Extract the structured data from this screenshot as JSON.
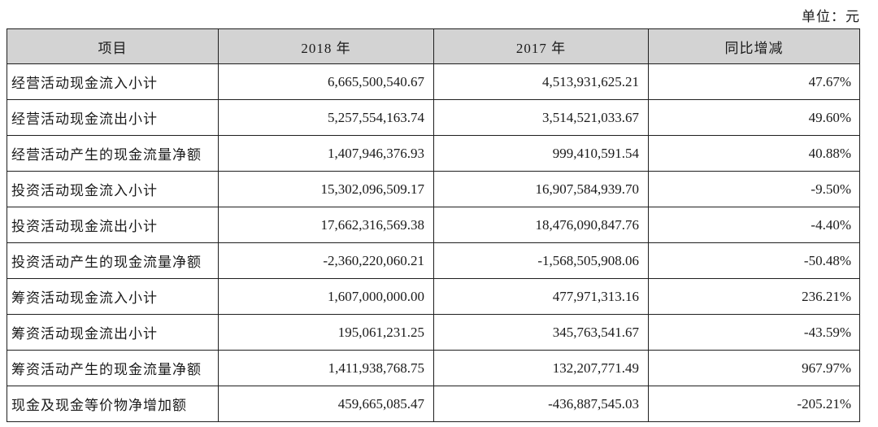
{
  "unit_label": "单位：元",
  "colors": {
    "header_bg": "#d3d3d3",
    "border": "#1f1f1f",
    "text": "#1a1a1a",
    "page_bg": "#ffffff"
  },
  "table": {
    "headers": [
      "项目",
      "2018 年",
      "2017 年",
      "同比增减"
    ],
    "rows": [
      {
        "item": "经营活动现金流入小计",
        "y2018": "6,665,500,540.67",
        "y2017": "4,513,931,625.21",
        "change": "47.67%"
      },
      {
        "item": "经营活动现金流出小计",
        "y2018": "5,257,554,163.74",
        "y2017": "3,514,521,033.67",
        "change": "49.60%"
      },
      {
        "item": "经营活动产生的现金流量净额",
        "y2018": "1,407,946,376.93",
        "y2017": "999,410,591.54",
        "change": "40.88%"
      },
      {
        "item": "投资活动现金流入小计",
        "y2018": "15,302,096,509.17",
        "y2017": "16,907,584,939.70",
        "change": "-9.50%"
      },
      {
        "item": "投资活动现金流出小计",
        "y2018": "17,662,316,569.38",
        "y2017": "18,476,090,847.76",
        "change": "-4.40%"
      },
      {
        "item": "投资活动产生的现金流量净额",
        "y2018": "-2,360,220,060.21",
        "y2017": "-1,568,505,908.06",
        "change": "-50.48%"
      },
      {
        "item": "筹资活动现金流入小计",
        "y2018": "1,607,000,000.00",
        "y2017": "477,971,313.16",
        "change": "236.21%"
      },
      {
        "item": "筹资活动现金流出小计",
        "y2018": "195,061,231.25",
        "y2017": "345,763,541.67",
        "change": "-43.59%"
      },
      {
        "item": "筹资活动产生的现金流量净额",
        "y2018": "1,411,938,768.75",
        "y2017": "132,207,771.49",
        "change": "967.97%"
      },
      {
        "item": "现金及现金等价物净增加额",
        "y2018": "459,665,085.47",
        "y2017": "-436,887,545.03",
        "change": "-205.21%"
      }
    ]
  }
}
